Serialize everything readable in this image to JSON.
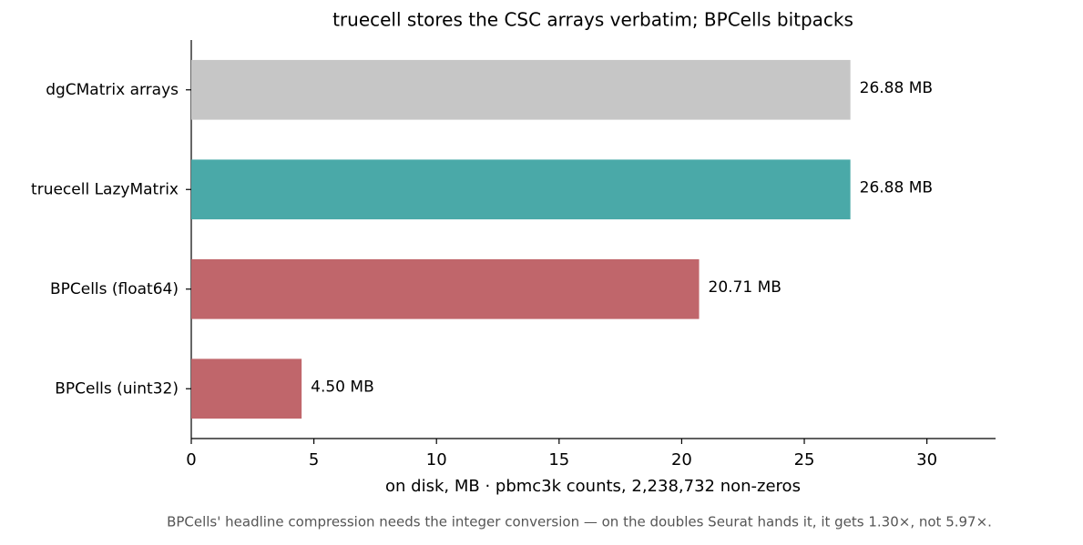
{
  "chart_data": {
    "type": "bar",
    "orientation": "horizontal",
    "title": "truecell stores the CSC arrays verbatim; BPCells bitpacks",
    "x_label": "on disk, MB  ·  pbmc3k counts, 2,238,732 non-zeros",
    "footnote": "BPCells' headline compression needs the integer conversion — on the doubles Seurat hands it, it gets 1.30×, not 5.97×.",
    "categories": [
      "dgCMatrix arrays",
      "truecell LazyMatrix",
      "BPCells (float64)",
      "BPCells (uint32)"
    ],
    "values": [
      26.88,
      26.88,
      20.71,
      4.5
    ],
    "value_labels": [
      "26.88 MB",
      "26.88 MB",
      "20.71 MB",
      "4.50 MB"
    ],
    "colors": [
      "#c6c6c6",
      "#4aa9a8",
      "#c0666b",
      "#c0666b"
    ],
    "xlim": [
      0,
      32.8
    ],
    "xticks": [
      0,
      5,
      10,
      15,
      20,
      25,
      30
    ],
    "grid": false
  }
}
